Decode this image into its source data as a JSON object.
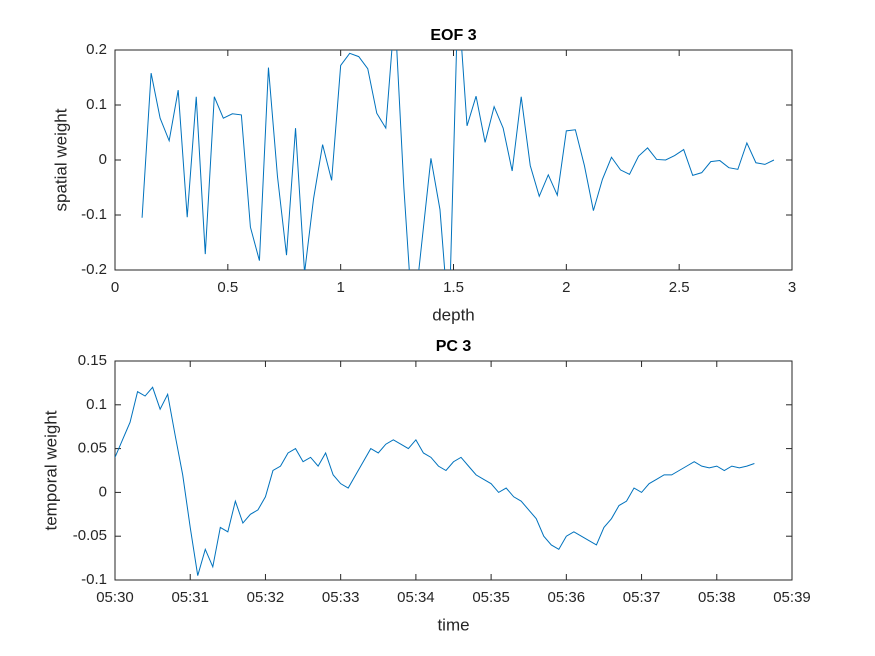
{
  "chart_data": [
    {
      "type": "line",
      "title": "EOF 3",
      "xlabel": "depth",
      "ylabel": "spatial weight",
      "xlim": [
        0,
        3
      ],
      "xticks": [
        0,
        0.5,
        1,
        1.5,
        2,
        2.5,
        3
      ],
      "ylim": [
        -0.2,
        0.2
      ],
      "yticks": [
        -0.2,
        -0.1,
        0,
        0.1,
        0.2
      ],
      "x": [
        0.12,
        0.16,
        0.2,
        0.24,
        0.28,
        0.32,
        0.36,
        0.4,
        0.44,
        0.48,
        0.52,
        0.56,
        0.6,
        0.64,
        0.68,
        0.72,
        0.76,
        0.8,
        0.84,
        0.88,
        0.92,
        0.96,
        1.0,
        1.04,
        1.08,
        1.12,
        1.16,
        1.2,
        1.24,
        1.28,
        1.32,
        1.4,
        1.44,
        1.48,
        1.52,
        1.56,
        1.6,
        1.64,
        1.68,
        1.72,
        1.76,
        1.8,
        1.84,
        1.88,
        1.92,
        1.96,
        2.0,
        2.04,
        2.08,
        2.12,
        2.16,
        2.2,
        2.24,
        2.28,
        2.32,
        2.36,
        2.4,
        2.44,
        2.48,
        2.52,
        2.56,
        2.6,
        2.64,
        2.68,
        2.72,
        2.76,
        2.8,
        2.84,
        2.88,
        2.92
      ],
      "series": [
        {
          "color": "#0072bd",
          "values": [
            -0.105,
            0.158,
            0.076,
            0.035,
            0.127,
            -0.104,
            0.115,
            -0.171,
            0.115,
            0.076,
            0.084,
            0.082,
            -0.122,
            -0.183,
            0.168,
            -0.03,
            -0.173,
            0.058,
            -0.205,
            -0.07,
            0.028,
            -0.037,
            0.172,
            0.194,
            0.188,
            0.166,
            0.085,
            0.058,
            0.27,
            -0.05,
            -0.3,
            0.003,
            -0.09,
            -0.3,
            0.3,
            0.062,
            0.116,
            0.032,
            0.097,
            0.058,
            -0.02,
            0.115,
            -0.01,
            -0.066,
            -0.027,
            -0.064,
            0.053,
            0.055,
            -0.01,
            -0.092,
            -0.035,
            0.005,
            -0.018,
            -0.026,
            0.007,
            0.022,
            0.001,
            0,
            0.008,
            0.019,
            -0.028,
            -0.023,
            -0.003,
            -0.001,
            -0.014,
            -0.017,
            0.031,
            -0.005,
            -0.008,
            0
          ]
        }
      ]
    },
    {
      "type": "line",
      "title": "PC 3",
      "xlabel": "time",
      "ylabel": "temporal weight",
      "xlim": [
        0,
        9
      ],
      "xticks": [
        {
          "value": 0,
          "label": "05:30"
        },
        {
          "value": 1,
          "label": "05:31"
        },
        {
          "value": 2,
          "label": "05:32"
        },
        {
          "value": 3,
          "label": "05:33"
        },
        {
          "value": 4,
          "label": "05:34"
        },
        {
          "value": 5,
          "label": "05:35"
        },
        {
          "value": 6,
          "label": "05:36"
        },
        {
          "value": 7,
          "label": "05:37"
        },
        {
          "value": 8,
          "label": "05:38"
        },
        {
          "value": 9,
          "label": "05:39"
        }
      ],
      "ylim": [
        -0.1,
        0.15
      ],
      "yticks": [
        -0.1,
        -0.05,
        0,
        0.05,
        0.1,
        0.15
      ],
      "x": [
        0,
        0.1,
        0.2,
        0.3,
        0.4,
        0.5,
        0.6,
        0.7,
        0.8,
        0.9,
        1.0,
        1.1,
        1.2,
        1.3,
        1.4,
        1.5,
        1.6,
        1.7,
        1.8,
        1.9,
        2.0,
        2.1,
        2.2,
        2.3,
        2.4,
        2.5,
        2.6,
        2.7,
        2.8,
        2.9,
        3.0,
        3.1,
        3.2,
        3.3,
        3.4,
        3.5,
        3.6,
        3.7,
        3.8,
        3.9,
        4.0,
        4.1,
        4.2,
        4.3,
        4.4,
        4.5,
        4.6,
        4.7,
        4.8,
        4.9,
        5.0,
        5.1,
        5.2,
        5.3,
        5.4,
        5.5,
        5.6,
        5.7,
        5.8,
        5.9,
        6.0,
        6.1,
        6.2,
        6.3,
        6.4,
        6.5,
        6.6,
        6.7,
        6.8,
        6.9,
        7.0,
        7.1,
        7.2,
        7.3,
        7.4,
        7.5,
        7.6,
        7.7,
        7.8,
        7.9,
        8.0,
        8.1,
        8.2,
        8.3,
        8.4,
        8.5
      ],
      "series": [
        {
          "color": "#0072bd",
          "values": [
            0.04,
            0.06,
            0.08,
            0.115,
            0.11,
            0.12,
            0.095,
            0.112,
            0.065,
            0.02,
            -0.04,
            -0.095,
            -0.065,
            -0.085,
            -0.04,
            -0.045,
            -0.01,
            -0.035,
            -0.025,
            -0.02,
            -0.005,
            0.025,
            0.03,
            0.045,
            0.05,
            0.035,
            0.04,
            0.03,
            0.045,
            0.02,
            0.01,
            0.005,
            0.02,
            0.035,
            0.05,
            0.045,
            0.055,
            0.06,
            0.055,
            0.05,
            0.06,
            0.045,
            0.04,
            0.03,
            0.025,
            0.035,
            0.04,
            0.03,
            0.02,
            0.015,
            0.01,
            0,
            0.005,
            -0.005,
            -0.01,
            -0.02,
            -0.03,
            -0.05,
            -0.06,
            -0.065,
            -0.05,
            -0.045,
            -0.05,
            -0.055,
            -0.06,
            -0.04,
            -0.03,
            -0.015,
            -0.01,
            0.005,
            0,
            0.01,
            0.015,
            0.02,
            0.02,
            0.025,
            0.03,
            0.035,
            0.03,
            0.028,
            0.03,
            0.025,
            0.03,
            0.028,
            0.03,
            0.033
          ]
        }
      ]
    }
  ]
}
